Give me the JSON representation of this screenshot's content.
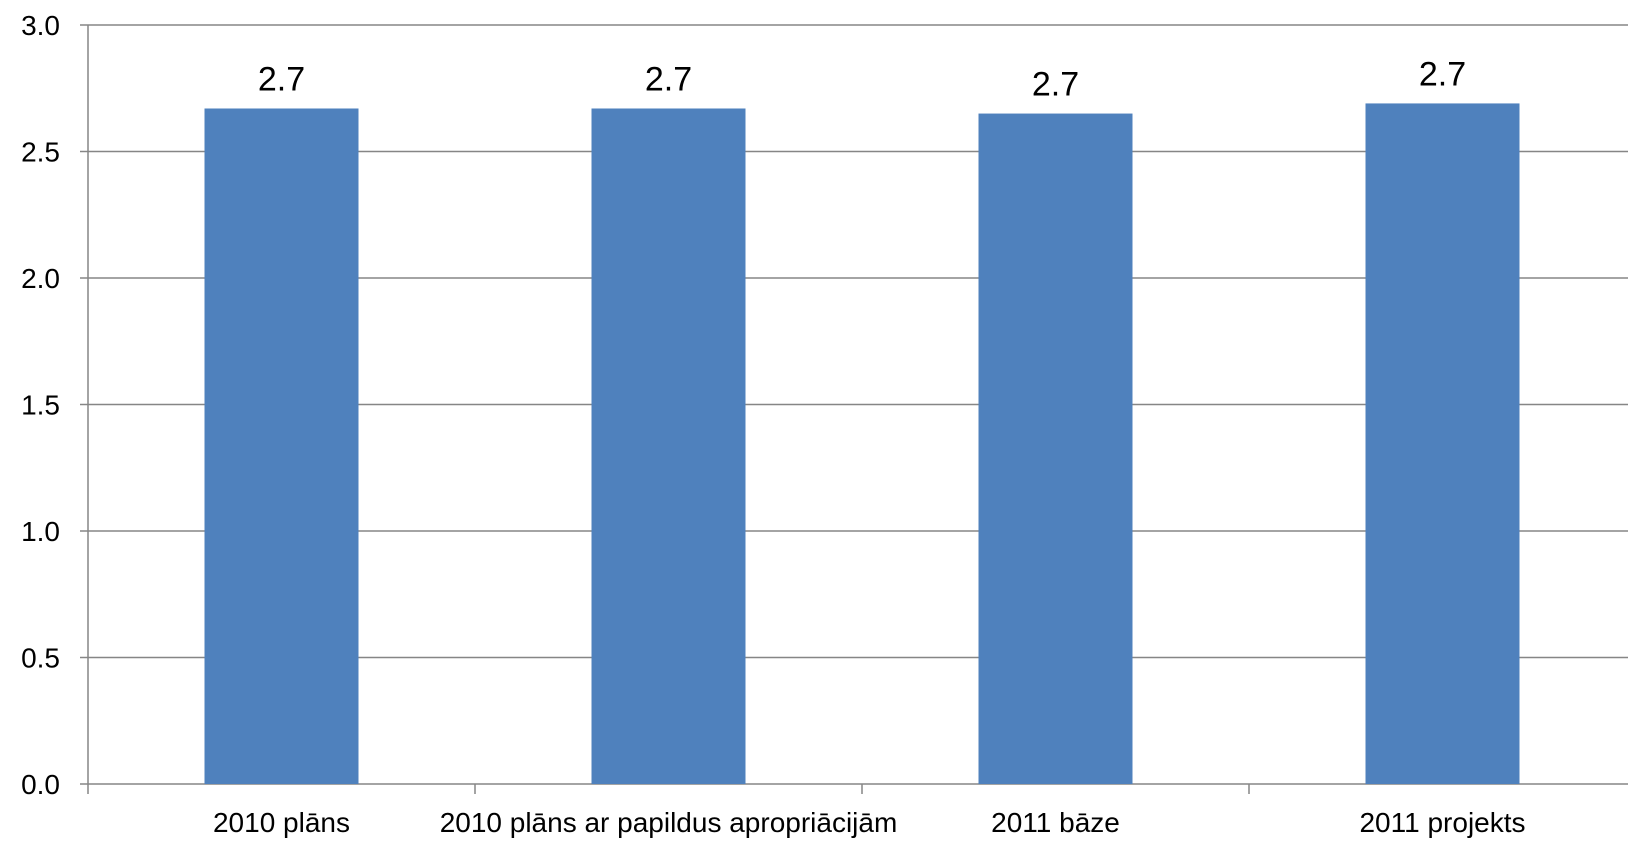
{
  "chart_data": {
    "type": "bar",
    "title": "",
    "xlabel": "",
    "ylabel": "",
    "categories": [
      "2010 plāns",
      "2010 plāns ar papildus apropriācijām",
      "2011 bāze",
      "2011 projekts"
    ],
    "values": [
      2.67,
      2.67,
      2.65,
      2.69
    ],
    "data_labels": [
      "2.7",
      "2.7",
      "2.7",
      "2.7"
    ],
    "ylim": [
      0,
      3
    ],
    "yticks": [
      "0.0",
      "0.5",
      "1.0",
      "1.5",
      "2.0",
      "2.5",
      "3.0"
    ],
    "grid": true,
    "legend": "none",
    "colors": {
      "bar": "#4F81BD",
      "grid": "#868686",
      "axis": "#868686"
    }
  }
}
